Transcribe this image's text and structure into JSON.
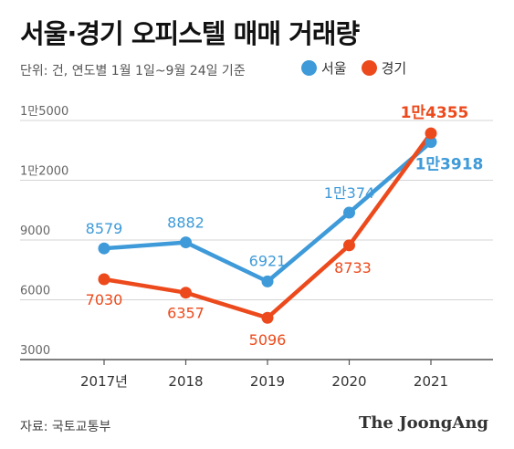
{
  "chart_data": {
    "type": "line",
    "title": "서울·경기 오피스텔 매매 거래량",
    "subtitle": "단위: 건, 연도별 1월 1일~9월 24일 기준",
    "categories": [
      "2017년",
      "2018",
      "2019",
      "2020",
      "2021"
    ],
    "ylim": [
      3000,
      15000
    ],
    "yticks": [
      {
        "value": 3000,
        "label": "3000"
      },
      {
        "value": 6000,
        "label": "6000"
      },
      {
        "value": 9000,
        "label": "9000"
      },
      {
        "value": 12000,
        "label": "1만2000"
      },
      {
        "value": 15000,
        "label": "1만5000"
      }
    ],
    "grid": true,
    "legend_position": "top-right",
    "series": [
      {
        "name": "서울",
        "color": "#3e9ad8",
        "values": [
          8579,
          8882,
          6921,
          10374,
          13918
        ],
        "labels": [
          "8579",
          "8882",
          "6921",
          "1만374",
          "1만3918"
        ]
      },
      {
        "name": "경기",
        "color": "#ec4a1c",
        "values": [
          7030,
          6357,
          5096,
          8733,
          14355
        ],
        "labels": [
          "7030",
          "6357",
          "5096",
          "8733",
          "1만4355"
        ]
      }
    ]
  },
  "source": "자료: 국토교통부",
  "brand": "The JoongAng"
}
